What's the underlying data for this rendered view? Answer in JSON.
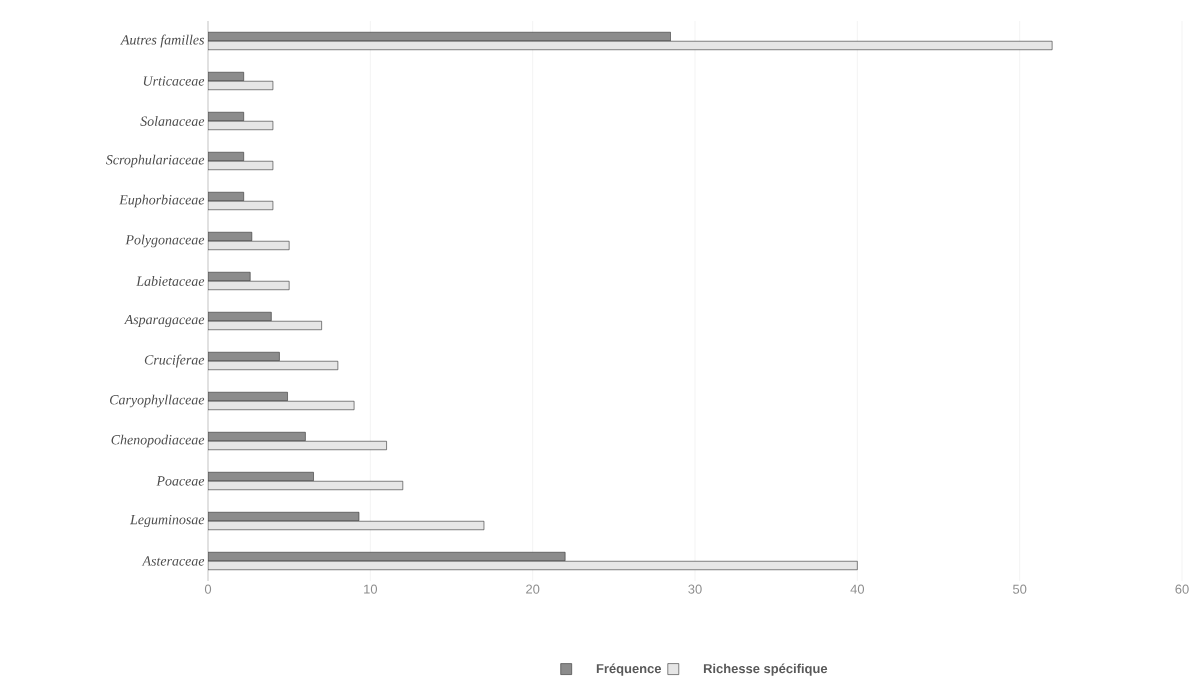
{
  "chart_data": {
    "type": "bar",
    "orientation": "horizontal",
    "categories": [
      "Autres familles",
      "Urticaceae",
      "Solanaceae",
      "Scrophulariaceae",
      "Euphorbiaceae",
      "Polygonaceae",
      "Labietaceae",
      "Asparagaceae",
      "Cruciferae",
      "Caryophyllaceae",
      "Chenopodiaceae",
      "Poaceae",
      "Leguminosae",
      "Asteraceae"
    ],
    "series": [
      {
        "name": "Fréquence",
        "color": "#8c8c8c",
        "values": [
          28.5,
          2.2,
          2.2,
          2.2,
          2.2,
          2.7,
          2.6,
          3.9,
          4.4,
          4.9,
          6,
          6.5,
          9.3,
          22
        ]
      },
      {
        "name": "Richesse spécifique",
        "color": "#e6e6e6",
        "values": [
          52,
          4,
          4,
          4,
          4,
          5,
          5,
          7,
          8,
          9,
          11,
          12,
          17,
          40
        ]
      }
    ],
    "xlim": [
      0,
      60
    ],
    "xticks": [
      0,
      10,
      20,
      30,
      40,
      50,
      60
    ],
    "grid": "x",
    "legend": "bottom"
  }
}
